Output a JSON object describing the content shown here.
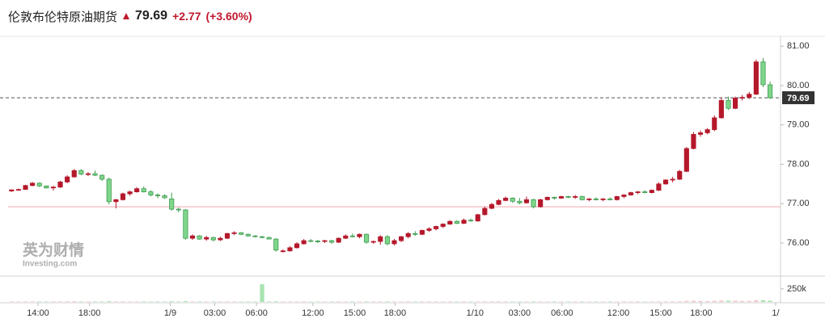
{
  "header": {
    "title": "伦敦布伦特原油期货",
    "change": "+2.77",
    "change_pct": "(+3.60%)"
  },
  "watermark": {
    "brand": "英为财情",
    "sub": "Investing.com"
  },
  "chart_data": {
    "type": "candlestick",
    "last_price": 79.69,
    "prev_close": 76.92,
    "up_color": "#b5182b",
    "down_color": "#7fd68b",
    "down_border": "#3f9b50",
    "volume_up_color": "#f3c4c8",
    "volume_down_color": "#a9e3b2",
    "x": [
      0,
      1,
      2,
      3,
      4,
      5,
      6,
      7,
      8,
      9,
      10,
      11,
      12,
      13,
      14,
      15,
      16,
      17,
      18,
      19,
      20,
      21,
      22,
      23,
      24,
      25,
      26,
      27,
      28,
      29,
      30,
      31,
      32,
      33,
      34,
      35,
      36,
      37,
      38,
      39,
      40,
      41,
      42,
      43,
      44,
      45,
      46,
      47,
      48,
      49,
      50,
      51,
      52,
      53,
      54,
      55,
      56,
      57,
      58,
      59,
      60,
      61,
      62,
      63,
      64,
      65,
      66,
      67,
      68,
      69,
      70,
      71,
      72,
      73,
      74,
      75,
      76,
      77,
      78,
      79,
      80,
      81,
      82,
      83,
      84,
      85,
      86,
      87,
      88,
      89,
      90,
      91,
      92,
      93,
      94,
      95,
      96,
      97,
      98,
      99,
      100,
      101,
      102,
      103,
      104,
      105,
      106,
      107,
      108,
      109
    ],
    "open": [
      77.32,
      77.35,
      77.36,
      77.46,
      77.52,
      77.45,
      77.4,
      77.42,
      77.55,
      77.68,
      77.84,
      77.75,
      77.76,
      77.72,
      77.62,
      77.05,
      77.1,
      77.25,
      77.3,
      77.38,
      77.3,
      77.22,
      77.2,
      77.12,
      76.86,
      76.84,
      76.12,
      76.18,
      76.1,
      76.14,
      76.08,
      76.12,
      76.24,
      76.26,
      76.22,
      76.18,
      76.16,
      76.14,
      76.1,
      75.8,
      75.8,
      75.88,
      75.98,
      76.06,
      76.05,
      76.04,
      76.06,
      76.02,
      76.12,
      76.18,
      76.16,
      76.22,
      76.02,
      76.04,
      76.16,
      75.98,
      76.06,
      76.16,
      76.24,
      76.22,
      76.32,
      76.36,
      76.42,
      76.48,
      76.55,
      76.5,
      76.58,
      76.56,
      76.72,
      76.88,
      76.98,
      77.08,
      77.14,
      77.06,
      77.02,
      77.1,
      76.92,
      77.1,
      77.16,
      77.14,
      77.18,
      77.16,
      77.18,
      77.1,
      77.12,
      77.1,
      77.12,
      77.1,
      77.18,
      77.22,
      77.28,
      77.3,
      77.28,
      77.34,
      77.5,
      77.6,
      77.62,
      77.82,
      78.4,
      78.76,
      78.8,
      78.88,
      79.18,
      79.62,
      79.42,
      79.68,
      79.7,
      79.78,
      80.6,
      80.02
    ],
    "high": [
      77.36,
      77.38,
      77.48,
      77.55,
      77.54,
      77.46,
      77.45,
      77.58,
      77.72,
      77.88,
      77.88,
      77.8,
      77.84,
      77.74,
      77.66,
      77.12,
      77.28,
      77.33,
      77.42,
      77.44,
      77.34,
      77.26,
      77.24,
      77.28,
      76.9,
      76.86,
      76.22,
      76.2,
      76.18,
      76.16,
      76.16,
      76.26,
      76.3,
      76.28,
      76.24,
      76.2,
      76.18,
      76.16,
      76.12,
      75.84,
      75.92,
      76.02,
      76.1,
      76.1,
      76.08,
      76.08,
      76.08,
      76.14,
      76.22,
      76.24,
      76.24,
      76.24,
      76.06,
      76.2,
      76.2,
      76.1,
      76.18,
      76.28,
      76.3,
      76.34,
      76.4,
      76.44,
      76.5,
      76.58,
      76.58,
      76.62,
      76.62,
      76.74,
      76.92,
      77.02,
      77.12,
      77.18,
      77.16,
      77.14,
      77.18,
      77.12,
      77.12,
      77.18,
      77.18,
      77.2,
      77.2,
      77.22,
      77.2,
      77.14,
      77.16,
      77.14,
      77.16,
      77.2,
      77.24,
      77.3,
      77.32,
      77.34,
      77.36,
      77.54,
      77.62,
      77.68,
      77.86,
      78.44,
      78.82,
      78.86,
      78.92,
      79.24,
      79.7,
      79.72,
      79.72,
      79.76,
      79.84,
      80.66,
      80.7,
      80.1
    ],
    "low": [
      77.3,
      77.33,
      77.35,
      77.44,
      77.42,
      77.38,
      77.33,
      77.4,
      77.52,
      77.66,
      77.72,
      77.7,
      77.7,
      77.58,
      76.98,
      76.88,
      77.08,
      77.2,
      77.28,
      77.28,
      77.18,
      77.14,
      77.12,
      76.82,
      76.78,
      76.08,
      76.08,
      76.08,
      76.06,
      76.04,
      76.05,
      76.1,
      76.2,
      76.2,
      76.16,
      76.14,
      76.12,
      76.1,
      75.78,
      75.76,
      75.78,
      75.86,
      75.96,
      76.02,
      76.0,
      76.0,
      75.98,
      76.0,
      76.1,
      76.14,
      76.12,
      75.98,
      75.98,
      75.96,
      75.94,
      75.94,
      76.02,
      76.12,
      76.18,
      76.2,
      76.28,
      76.32,
      76.38,
      76.46,
      76.48,
      76.48,
      76.54,
      76.54,
      76.7,
      76.86,
      76.96,
      77.06,
      77.02,
      76.98,
      77.0,
      76.88,
      76.9,
      77.08,
      77.1,
      77.12,
      77.14,
      77.12,
      77.08,
      77.06,
      77.08,
      77.06,
      77.08,
      77.08,
      77.14,
      77.2,
      77.24,
      77.26,
      77.26,
      77.32,
      77.48,
      77.54,
      77.6,
      77.8,
      78.38,
      78.7,
      78.76,
      78.84,
      79.16,
      79.38,
      79.4,
      79.62,
      79.66,
      79.76,
      79.96,
      79.66
    ],
    "close": [
      77.35,
      77.36,
      77.46,
      77.52,
      77.45,
      77.4,
      77.42,
      77.55,
      77.68,
      77.84,
      77.75,
      77.76,
      77.72,
      77.62,
      77.05,
      77.1,
      77.25,
      77.3,
      77.38,
      77.3,
      77.22,
      77.2,
      77.15,
      76.86,
      76.84,
      76.12,
      76.18,
      76.1,
      76.14,
      76.08,
      76.12,
      76.24,
      76.26,
      76.22,
      76.18,
      76.16,
      76.14,
      76.1,
      75.82,
      75.8,
      75.88,
      75.98,
      76.06,
      76.05,
      76.04,
      76.06,
      76.02,
      76.12,
      76.18,
      76.16,
      76.22,
      76.02,
      76.04,
      76.16,
      75.98,
      76.06,
      76.16,
      76.24,
      76.22,
      76.32,
      76.36,
      76.42,
      76.48,
      76.55,
      76.5,
      76.58,
      76.56,
      76.72,
      76.88,
      76.98,
      77.08,
      77.14,
      77.06,
      77.02,
      77.1,
      76.92,
      77.1,
      77.16,
      77.14,
      77.18,
      77.16,
      77.18,
      77.1,
      77.12,
      77.1,
      77.12,
      77.1,
      77.18,
      77.22,
      77.28,
      77.3,
      77.28,
      77.34,
      77.5,
      77.6,
      77.62,
      77.82,
      78.4,
      78.76,
      78.8,
      78.88,
      79.18,
      79.62,
      79.42,
      79.68,
      79.7,
      79.78,
      80.6,
      80.02,
      79.69
    ],
    "volume": [
      9000,
      8000,
      10000,
      9000,
      8000,
      8000,
      9000,
      10000,
      11000,
      12000,
      10000,
      9000,
      9000,
      8000,
      14000,
      10000,
      9000,
      8000,
      8000,
      9000,
      8000,
      8000,
      8000,
      12000,
      9000,
      16000,
      10000,
      8000,
      8000,
      8000,
      8000,
      9000,
      8000,
      8000,
      8000,
      8000,
      340000,
      9000,
      12000,
      9000,
      8000,
      8000,
      9000,
      8000,
      8000,
      8000,
      8000,
      9000,
      8000,
      8000,
      8000,
      10000,
      8000,
      9000,
      10000,
      8000,
      8000,
      9000,
      8000,
      9000,
      9000,
      9000,
      8000,
      9000,
      8000,
      9000,
      8000,
      9000,
      10000,
      10000,
      10000,
      9000,
      8000,
      8000,
      9000,
      10000,
      9000,
      8000,
      8000,
      8000,
      8000,
      8000,
      8000,
      8000,
      8000,
      8000,
      8000,
      8000,
      9000,
      9000,
      9000,
      8000,
      8000,
      10000,
      10000,
      9000,
      12000,
      20000,
      22000,
      18000,
      16000,
      20000,
      26000,
      24000,
      22000,
      18000,
      20000,
      30000,
      34000,
      24000
    ],
    "xlim": [
      -0.5,
      110.5
    ],
    "xticks": [
      {
        "value": 3.8,
        "label": "14:00"
      },
      {
        "value": 11.2,
        "label": "18:00"
      },
      {
        "value": 22.8,
        "label": "1/9"
      },
      {
        "value": 29.2,
        "label": "03:00"
      },
      {
        "value": 35.2,
        "label": "06:00"
      },
      {
        "value": 43.3,
        "label": "12:00"
      },
      {
        "value": 49.3,
        "label": "15:00"
      },
      {
        "value": 55.1,
        "label": "18:00"
      },
      {
        "value": 66.6,
        "label": "1/10"
      },
      {
        "value": 73.0,
        "label": "03:00"
      },
      {
        "value": 79.1,
        "label": "06:00"
      },
      {
        "value": 87.2,
        "label": "12:00"
      },
      {
        "value": 93.3,
        "label": "15:00"
      },
      {
        "value": 99.1,
        "label": "18:00"
      },
      {
        "value": 109.8,
        "label": "1/"
      }
    ],
    "ylim": [
      75.2,
      81.25
    ],
    "yticks": [
      {
        "value": 76,
        "label": "76.00"
      },
      {
        "value": 77,
        "label": "77.00"
      },
      {
        "value": 78,
        "label": "78.00"
      },
      {
        "value": 79,
        "label": "79.00"
      },
      {
        "value": 80,
        "label": "80.00"
      },
      {
        "value": 81,
        "label": "81.00"
      }
    ],
    "volume_lim": [
      0,
      480000
    ],
    "volume_ticks": [
      {
        "value": 250000,
        "label": "250k"
      }
    ]
  }
}
